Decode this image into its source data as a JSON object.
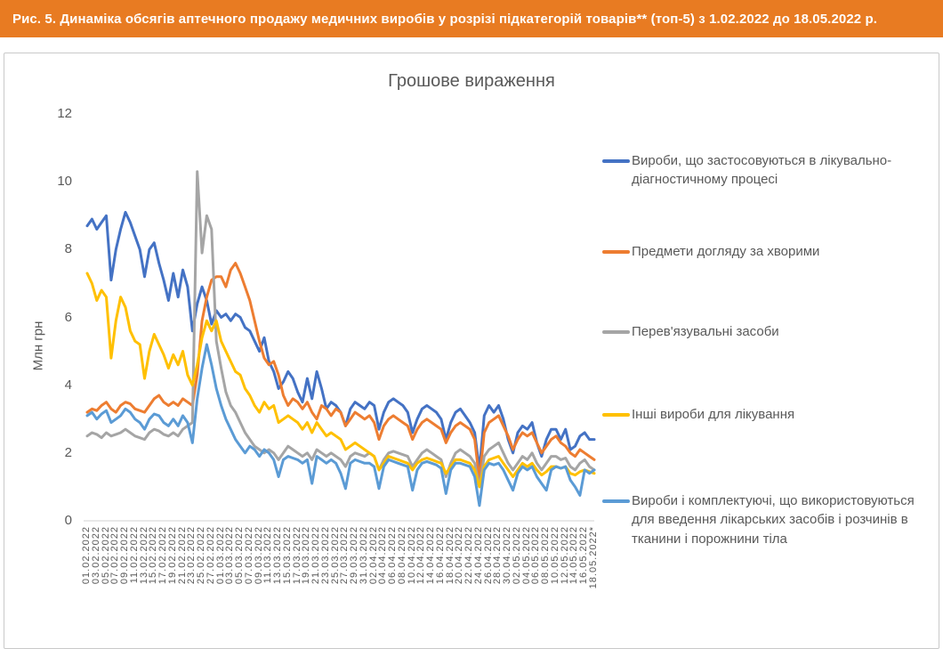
{
  "header": {
    "title": "Рис. 5. Динаміка обсягів аптечного продажу медичних виробів у розрізі підкатегорій товарів** (топ-5) з 1.02.2022 до 18.05.2022 р.",
    "bg_color": "#E87B22",
    "text_color": "#FFFFFF"
  },
  "chart_data": {
    "type": "line",
    "title": "Грошове вираження",
    "ylabel": "Млн грн",
    "ylim": [
      0,
      12
    ],
    "yticks": [
      0,
      2,
      4,
      6,
      8,
      10,
      12
    ],
    "grid": false,
    "legend_position": "right",
    "axis_color": "#D9D9D9",
    "x_tick_every": 2,
    "x_tick_labels": [
      "01.02.2022",
      "03.02.2022",
      "05.02.2022",
      "07.02.2022",
      "09.02.2022",
      "11.02.2022",
      "13.02.2022",
      "15.02.2022",
      "17.02.2022",
      "19.02.2022",
      "21.02.2022",
      "23.02.2022",
      "25.02.2022",
      "27.02.2022",
      "01.03.2022",
      "03.03.2022",
      "05.03.2022",
      "07.03.2022",
      "09.03.2022",
      "11.03.2022",
      "13.03.2022",
      "15.03.2022",
      "17.03.2022",
      "19.03.2022",
      "21.03.2022",
      "23.03.2022",
      "25.03.2022",
      "27.03.2022",
      "29.03.2022",
      "31.03.2022",
      "02.04.2022",
      "04.04.2022",
      "06.04.2022",
      "08.04.2022",
      "10.04.2022",
      "12.04.2022",
      "14.04.2022",
      "16.04.2022",
      "18.04.2022",
      "20.04.2022",
      "22.04.2022",
      "24.04.2022",
      "26.04.2022",
      "28.04.2022",
      "30.04.2022",
      "02.05.2022",
      "04.05.2022",
      "06.05.2022",
      "08.05.2022",
      "10.05.2022",
      "12.05.2022",
      "14.05.2022",
      "16.05.2022",
      "18.05.2022*"
    ],
    "series": [
      {
        "name": "Вироби, що застосовуються в лікувально-діагностичному процесі",
        "color": "#4472C4",
        "values": [
          8.7,
          8.9,
          8.6,
          8.8,
          9.0,
          7.1,
          8.0,
          8.6,
          9.1,
          8.8,
          8.4,
          8.0,
          7.2,
          8.0,
          8.2,
          7.6,
          7.1,
          6.5,
          7.3,
          6.6,
          7.4,
          6.9,
          5.6,
          6.4,
          6.9,
          6.5,
          5.8,
          6.2,
          6.0,
          6.1,
          5.9,
          6.1,
          6.0,
          5.7,
          5.6,
          5.3,
          5.0,
          5.4,
          4.7,
          4.4,
          3.9,
          4.1,
          4.4,
          4.2,
          3.8,
          3.5,
          4.2,
          3.6,
          4.4,
          3.9,
          3.3,
          3.5,
          3.4,
          3.2,
          2.8,
          3.3,
          3.5,
          3.4,
          3.3,
          3.5,
          3.4,
          2.7,
          3.2,
          3.5,
          3.6,
          3.5,
          3.4,
          3.2,
          2.6,
          3.0,
          3.3,
          3.4,
          3.3,
          3.2,
          3.0,
          2.4,
          2.9,
          3.2,
          3.3,
          3.1,
          2.9,
          2.6,
          1.5,
          3.1,
          3.4,
          3.2,
          3.4,
          3.0,
          2.4,
          2.0,
          2.6,
          2.8,
          2.7,
          2.9,
          2.3,
          1.9,
          2.4,
          2.7,
          2.7,
          2.4,
          2.7,
          2.1,
          2.2,
          2.5,
          2.6,
          2.4,
          2.4
        ]
      },
      {
        "name": "Предмети догляду за хворими",
        "color": "#ED7D31",
        "values": [
          3.2,
          3.3,
          3.25,
          3.4,
          3.5,
          3.3,
          3.2,
          3.4,
          3.5,
          3.45,
          3.3,
          3.25,
          3.2,
          3.4,
          3.6,
          3.7,
          3.5,
          3.4,
          3.5,
          3.4,
          3.6,
          3.5,
          3.4,
          4.3,
          5.9,
          6.6,
          7.1,
          7.2,
          7.2,
          6.9,
          7.4,
          7.6,
          7.3,
          6.9,
          6.5,
          5.9,
          5.3,
          4.8,
          4.6,
          4.7,
          4.3,
          3.7,
          3.4,
          3.6,
          3.5,
          3.3,
          3.5,
          3.2,
          3.0,
          3.4,
          3.3,
          3.1,
          3.3,
          3.2,
          2.8,
          3.0,
          3.2,
          3.1,
          3.0,
          3.1,
          2.9,
          2.4,
          2.8,
          3.0,
          3.1,
          3.0,
          2.9,
          2.8,
          2.4,
          2.7,
          2.9,
          3.0,
          2.9,
          2.8,
          2.7,
          2.3,
          2.6,
          2.8,
          2.9,
          2.8,
          2.7,
          2.4,
          1.2,
          2.6,
          2.9,
          3.0,
          3.1,
          2.8,
          2.5,
          2.1,
          2.4,
          2.6,
          2.5,
          2.6,
          2.3,
          2.0,
          2.2,
          2.4,
          2.5,
          2.3,
          2.2,
          2.0,
          1.9,
          2.1,
          2.0,
          1.9,
          1.8
        ]
      },
      {
        "name": "Перев'язувальні засоби",
        "color": "#A5A5A5",
        "values": [
          2.5,
          2.6,
          2.55,
          2.45,
          2.6,
          2.5,
          2.55,
          2.6,
          2.7,
          2.6,
          2.5,
          2.45,
          2.4,
          2.6,
          2.7,
          2.65,
          2.55,
          2.5,
          2.6,
          2.5,
          2.7,
          2.8,
          2.9,
          10.3,
          7.9,
          9.0,
          8.6,
          5.3,
          4.5,
          3.8,
          3.4,
          3.2,
          2.9,
          2.6,
          2.4,
          2.2,
          2.1,
          2.0,
          2.1,
          2.0,
          1.8,
          2.0,
          2.2,
          2.1,
          2.0,
          1.9,
          2.0,
          1.8,
          2.1,
          2.0,
          1.9,
          2.0,
          1.9,
          1.8,
          1.6,
          1.9,
          2.0,
          1.95,
          1.9,
          2.0,
          1.9,
          1.5,
          1.8,
          2.0,
          2.05,
          2.0,
          1.95,
          1.9,
          1.6,
          1.8,
          2.0,
          2.1,
          2.0,
          1.9,
          1.8,
          1.3,
          1.7,
          2.0,
          2.1,
          2.0,
          1.9,
          1.7,
          1.0,
          1.9,
          2.1,
          2.2,
          2.3,
          2.0,
          1.7,
          1.5,
          1.7,
          1.9,
          1.8,
          2.0,
          1.7,
          1.5,
          1.7,
          1.9,
          1.9,
          1.8,
          1.85,
          1.6,
          1.5,
          1.7,
          1.8,
          1.6,
          1.5
        ]
      },
      {
        "name": "Інші вироби для лікування",
        "color": "#FFC000",
        "values": [
          7.3,
          7.0,
          6.5,
          6.8,
          6.6,
          4.8,
          5.9,
          6.6,
          6.3,
          5.6,
          5.3,
          5.2,
          4.2,
          5.0,
          5.5,
          5.2,
          4.9,
          4.5,
          4.9,
          4.6,
          5.0,
          4.3,
          4.0,
          4.6,
          5.4,
          5.9,
          5.6,
          5.9,
          5.3,
          5.0,
          4.7,
          4.4,
          4.3,
          3.9,
          3.7,
          3.4,
          3.2,
          3.5,
          3.3,
          3.4,
          2.9,
          3.0,
          3.1,
          3.0,
          2.9,
          2.7,
          2.9,
          2.6,
          2.9,
          2.7,
          2.5,
          2.6,
          2.5,
          2.4,
          2.1,
          2.2,
          2.3,
          2.2,
          2.1,
          2.0,
          1.9,
          1.5,
          1.7,
          1.9,
          1.85,
          1.8,
          1.75,
          1.7,
          1.5,
          1.7,
          1.8,
          1.85,
          1.8,
          1.75,
          1.7,
          1.4,
          1.6,
          1.8,
          1.8,
          1.75,
          1.7,
          1.5,
          1.0,
          1.6,
          1.8,
          1.85,
          1.9,
          1.7,
          1.5,
          1.3,
          1.5,
          1.7,
          1.6,
          1.7,
          1.5,
          1.35,
          1.45,
          1.6,
          1.6,
          1.55,
          1.6,
          1.4,
          1.35,
          1.45,
          1.5,
          1.45,
          1.4
        ]
      },
      {
        "name": "Вироби і комплектуючі, що використовуються для введення лікарських засобів і розчинів в тканини і порожнини тіла",
        "color": "#5B9BD5",
        "values": [
          3.1,
          3.2,
          3.0,
          3.15,
          3.25,
          2.9,
          3.0,
          3.1,
          3.3,
          3.2,
          3.0,
          2.9,
          2.7,
          3.0,
          3.15,
          3.1,
          2.9,
          2.8,
          3.0,
          2.8,
          3.1,
          2.9,
          2.3,
          3.6,
          4.5,
          5.2,
          4.6,
          3.9,
          3.4,
          3.0,
          2.7,
          2.4,
          2.2,
          2.0,
          2.2,
          2.1,
          1.9,
          2.1,
          2.0,
          1.8,
          1.3,
          1.8,
          1.9,
          1.85,
          1.8,
          1.7,
          1.8,
          1.1,
          1.9,
          1.8,
          1.7,
          1.8,
          1.7,
          1.4,
          0.95,
          1.7,
          1.8,
          1.75,
          1.7,
          1.7,
          1.6,
          0.95,
          1.6,
          1.8,
          1.75,
          1.7,
          1.65,
          1.6,
          0.9,
          1.5,
          1.7,
          1.75,
          1.7,
          1.65,
          1.55,
          0.8,
          1.5,
          1.7,
          1.7,
          1.65,
          1.6,
          1.3,
          0.45,
          1.5,
          1.7,
          1.65,
          1.7,
          1.5,
          1.2,
          0.9,
          1.4,
          1.6,
          1.5,
          1.6,
          1.3,
          1.1,
          0.9,
          1.5,
          1.6,
          1.55,
          1.6,
          1.2,
          1.0,
          0.75,
          1.5,
          1.4,
          1.5
        ]
      }
    ]
  }
}
